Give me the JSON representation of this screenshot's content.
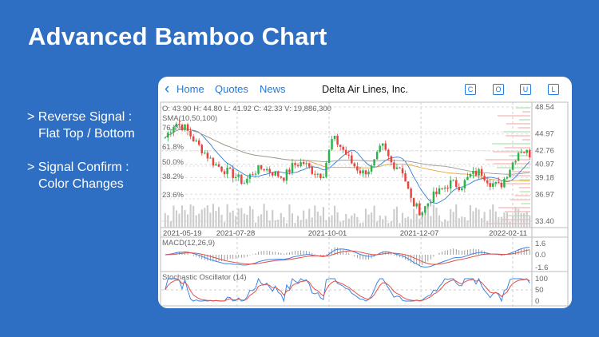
{
  "headline": "Advanced Bamboo Chart",
  "features": [
    {
      "line1": "> Reverse Signal :",
      "line2": "Flat Top / Bottom"
    },
    {
      "line1": "> Signal Confirm :",
      "line2": "Color Changes"
    }
  ],
  "app": {
    "nav": {
      "back_icon": "chevron-left-icon",
      "home": "Home",
      "quotes": "Quotes",
      "news": "News",
      "title": "Delta Air Lines, Inc.",
      "buttons": [
        "C",
        "O",
        "U",
        "L"
      ]
    },
    "colors": {
      "background": "#2e6fc3",
      "up": "#2bb24c",
      "down": "#e8433d",
      "macd": "#3a86e8",
      "signal": "#e0504a",
      "sma_short": "#2f7fd8",
      "sma_mid": "#e8a33c",
      "sma_long": "#999999"
    }
  },
  "chart_data": {
    "type": "candlestick",
    "ohlcv": "O: 43.90  H: 44.80  L: 41.92  C: 42.33  V: 19,886,300",
    "sma_label": "SMA(10,50,100)",
    "fib_levels": [
      "76.4%",
      "61.8%",
      "50.0%",
      "38.2%",
      "23.6%"
    ],
    "price_ticks": [
      "48.54",
      "44.97",
      "42.76",
      "40.97",
      "39.18",
      "36.97",
      "33.40"
    ],
    "date_ticks": [
      "2021-05-19",
      "2021-07-28",
      "2021-10-01",
      "2021-12-07",
      "2022-02-11"
    ],
    "approx_close": [
      44.5,
      46.5,
      45.8,
      44.0,
      42.5,
      41.0,
      40.2,
      39.5,
      38.5,
      40.0,
      40.5,
      39.8,
      39.2,
      40.8,
      41.2,
      40.0,
      39.5,
      44.5,
      43.0,
      41.0,
      39.8,
      40.5,
      43.5,
      41.0,
      40.5,
      36.0,
      34.5,
      36.5,
      37.5,
      38.5,
      38.0,
      39.5,
      40.0,
      38.5,
      38.0,
      40.5,
      43.0,
      42.3
    ],
    "ylim": [
      33.4,
      48.54
    ],
    "macd": {
      "label": "MACD(12,26,9)",
      "ticks": [
        "1.6",
        "0.0",
        "-1.6"
      ]
    },
    "stochastic": {
      "label": "Stochastic Oscillator (14)",
      "ticks": [
        "100",
        "50",
        "0"
      ]
    }
  }
}
